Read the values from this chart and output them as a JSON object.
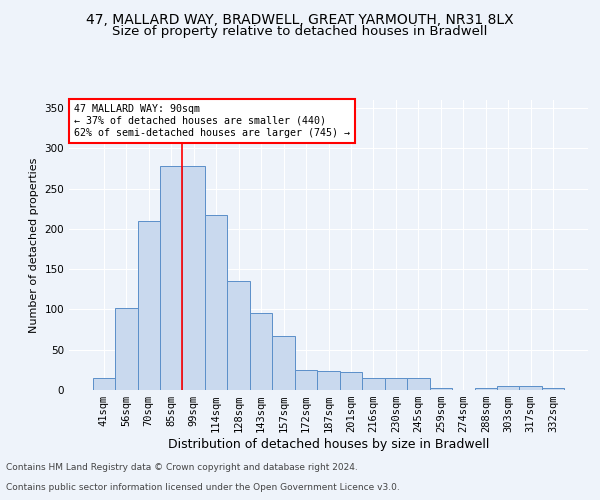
{
  "title1": "47, MALLARD WAY, BRADWELL, GREAT YARMOUTH, NR31 8LX",
  "title2": "Size of property relative to detached houses in Bradwell",
  "xlabel": "Distribution of detached houses by size in Bradwell",
  "ylabel": "Number of detached properties",
  "categories": [
    "41sqm",
    "56sqm",
    "70sqm",
    "85sqm",
    "99sqm",
    "114sqm",
    "128sqm",
    "143sqm",
    "157sqm",
    "172sqm",
    "187sqm",
    "201sqm",
    "216sqm",
    "230sqm",
    "245sqm",
    "259sqm",
    "274sqm",
    "288sqm",
    "303sqm",
    "317sqm",
    "332sqm"
  ],
  "values": [
    15,
    102,
    210,
    278,
    278,
    217,
    135,
    96,
    67,
    25,
    24,
    22,
    15,
    15,
    15,
    3,
    0,
    3,
    5,
    5,
    3
  ],
  "bar_color": "#c9d9ee",
  "bar_edge_color": "#5b8fc9",
  "red_line_x": 3.5,
  "ylim": [
    0,
    360
  ],
  "yticks": [
    0,
    50,
    100,
    150,
    200,
    250,
    300,
    350
  ],
  "annotation_text": "47 MALLARD WAY: 90sqm\n← 37% of detached houses are smaller (440)\n62% of semi-detached houses are larger (745) →",
  "annotation_box_color": "white",
  "annotation_box_edge_color": "red",
  "footer1": "Contains HM Land Registry data © Crown copyright and database right 2024.",
  "footer2": "Contains public sector information licensed under the Open Government Licence v3.0.",
  "bg_color": "#eef3fa",
  "plot_bg_color": "#eef3fa",
  "grid_color": "white",
  "title1_fontsize": 10,
  "title2_fontsize": 9.5,
  "xlabel_fontsize": 9,
  "ylabel_fontsize": 8,
  "tick_fontsize": 7.5,
  "footer_fontsize": 6.5
}
